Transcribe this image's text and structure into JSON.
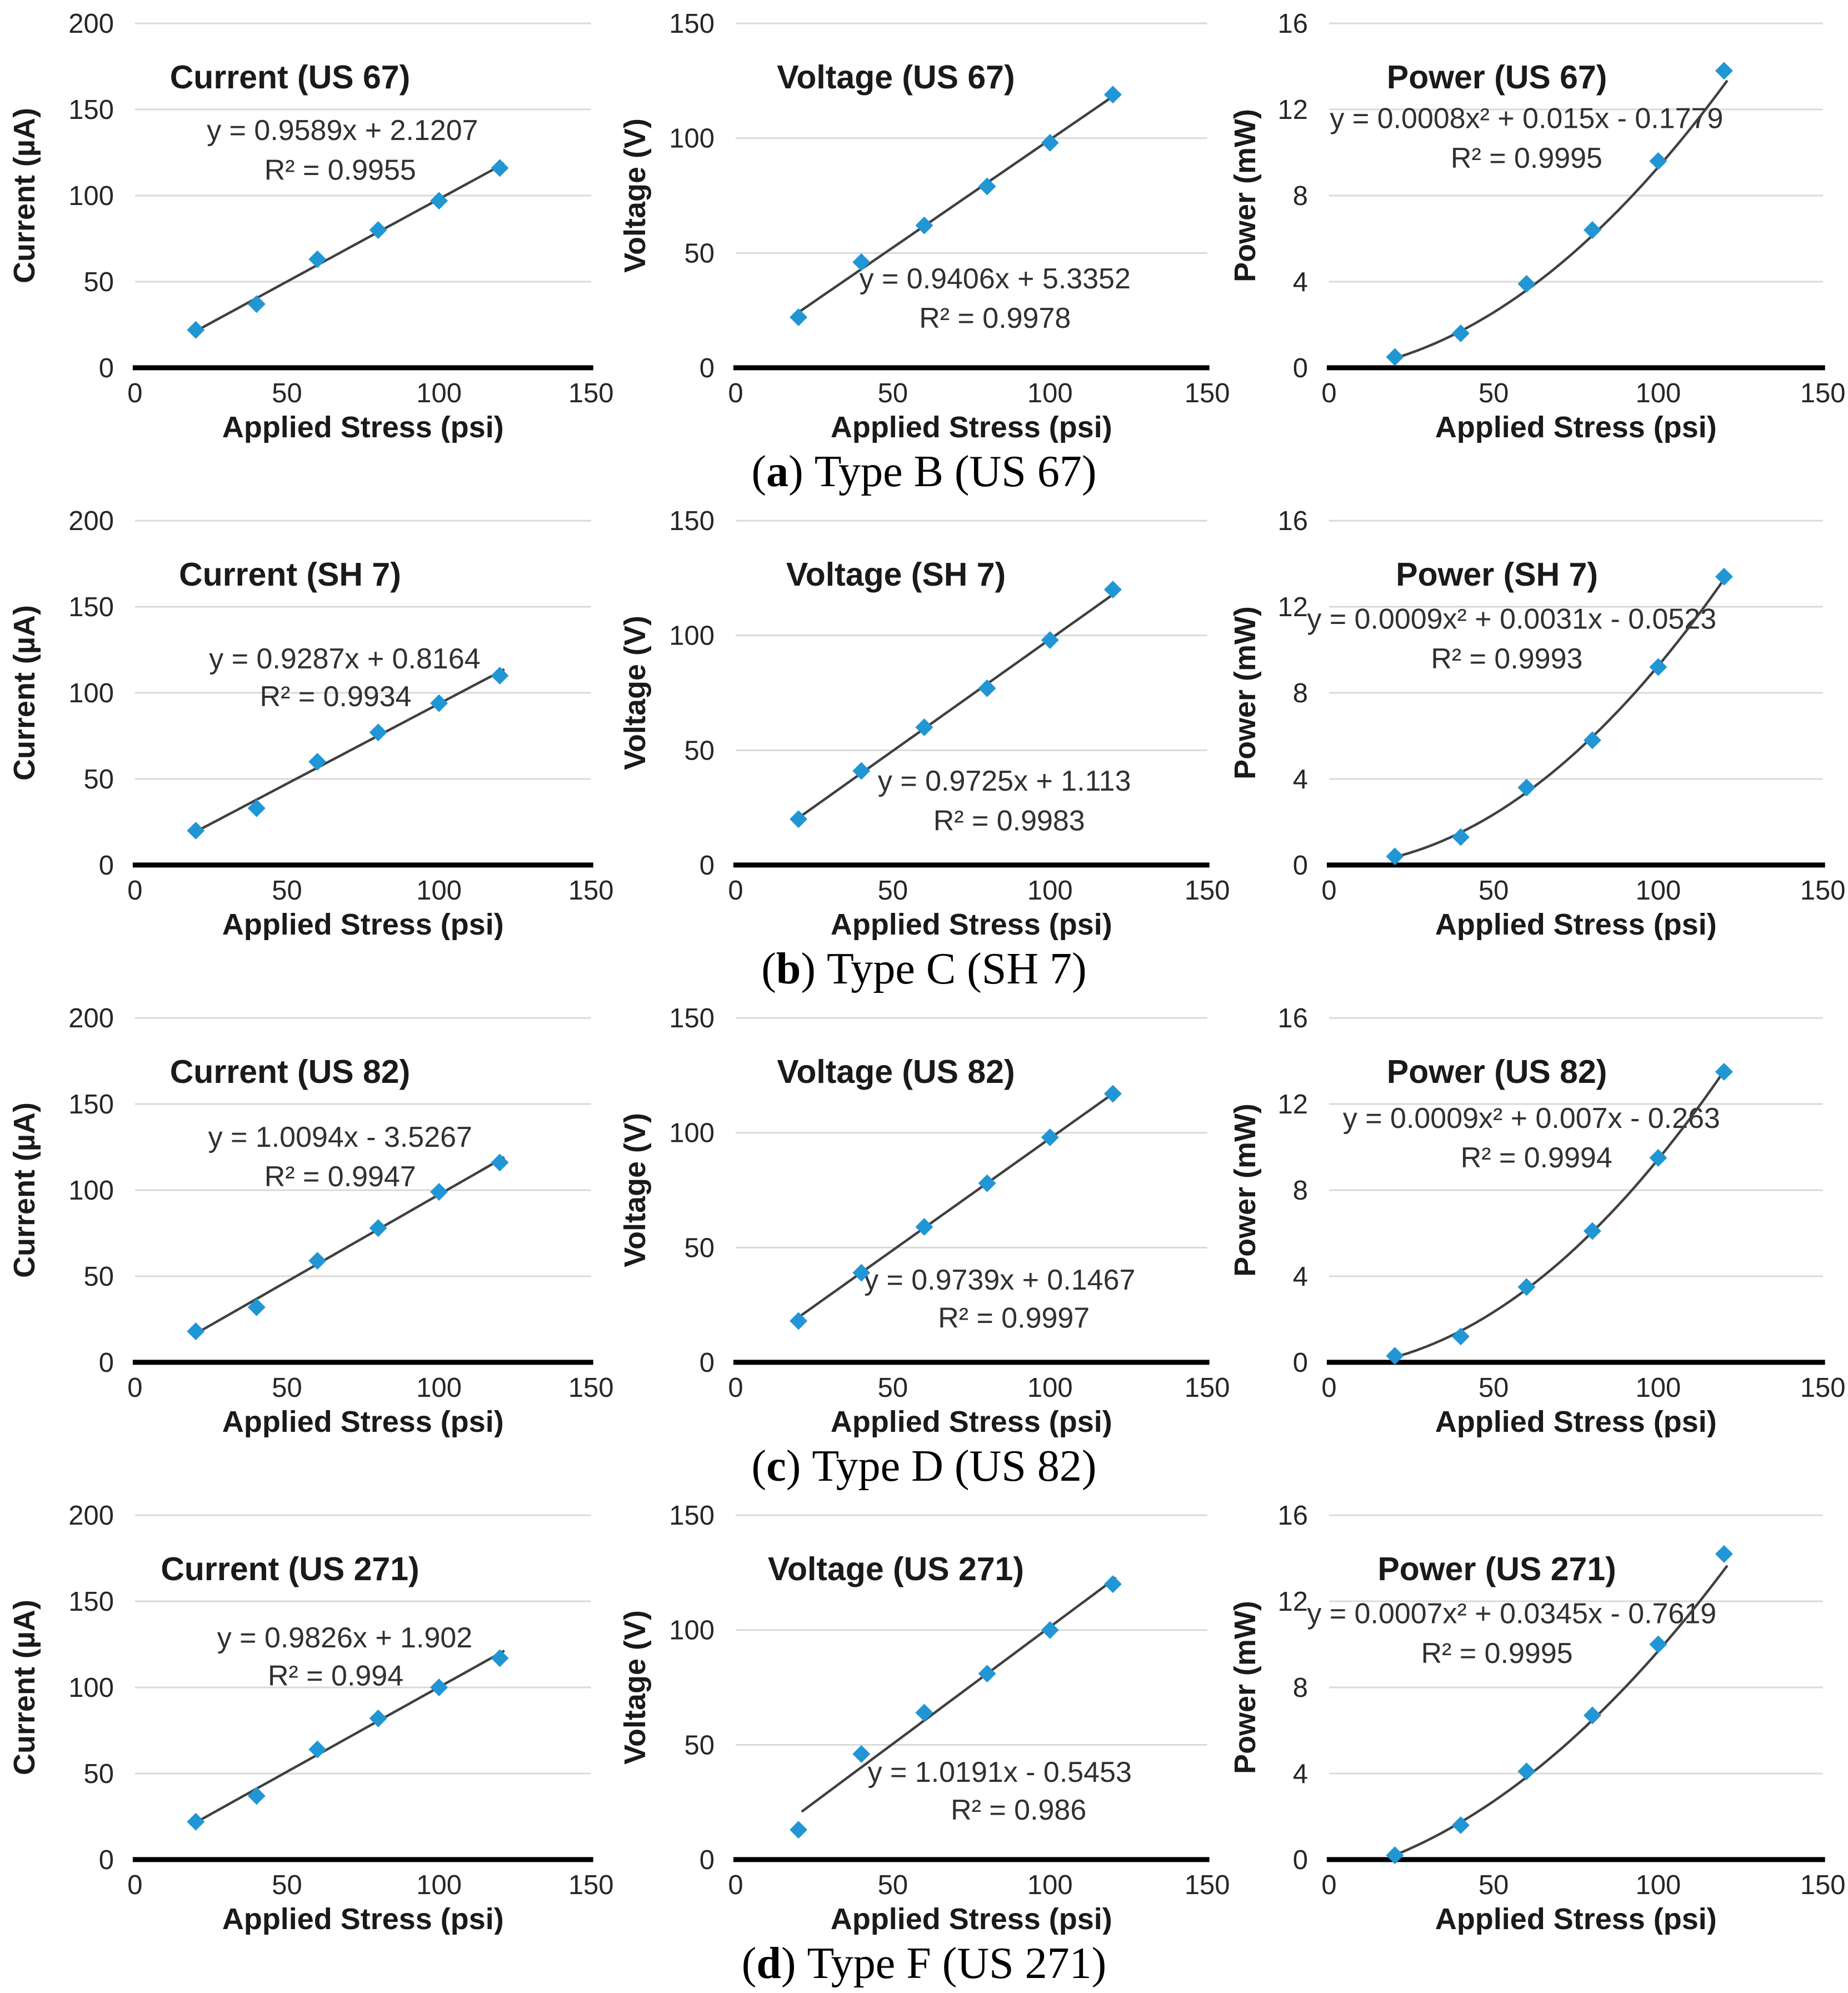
{
  "shared": {
    "xlabel": "Applied Stress (psi)",
    "xlim": [
      0,
      150
    ],
    "xticks": [
      0,
      50,
      100,
      150
    ],
    "marker_color": "#2196d4",
    "trend_color": "#404040",
    "grid_color": "#d9d9d9",
    "text_color": "#262626",
    "title_color": "#1a1a1a",
    "equation_color": "#303030",
    "background": "#ffffff"
  },
  "punct": {
    "open": "(",
    "close": ")"
  },
  "captions": [
    {
      "letter": "a",
      "text": "Type B (US 67)"
    },
    {
      "letter": "b",
      "text": "Type C (SH 7)"
    },
    {
      "letter": "c",
      "text": "Type D (US 82)"
    },
    {
      "letter": "d",
      "text": "Type F (US 271)"
    }
  ],
  "chart_data": [
    {
      "type": "scatter",
      "title": "Current (US 67)",
      "ylabel": "Current (µA)",
      "ylim": [
        0,
        200
      ],
      "yticks": [
        0,
        50,
        100,
        150,
        200
      ],
      "x": [
        20,
        40,
        60,
        80,
        100,
        120
      ],
      "y": [
        22,
        37,
        63,
        80,
        97,
        116
      ],
      "trendline": {
        "kind": "linear",
        "slope": 0.9589,
        "intercept": 2.1207,
        "domain": [
          20,
          121.5
        ]
      },
      "equation": "y = 0.9589x + 2.1207",
      "r_squared": "R² = 0.9955",
      "eq_pos": [
        0.455,
        0.31
      ],
      "r2_pos": [
        0.45,
        0.425
      ],
      "grid": true,
      "legend": "none"
    },
    {
      "type": "scatter",
      "title": "Voltage (US 67)",
      "ylabel": "Voltage (V)",
      "ylim": [
        0,
        150
      ],
      "yticks": [
        0,
        50,
        100,
        150
      ],
      "x": [
        20,
        40,
        60,
        80,
        100,
        120
      ],
      "y": [
        22,
        46,
        62,
        79,
        98,
        119
      ],
      "trendline": {
        "kind": "linear",
        "slope": 0.9406,
        "intercept": 5.3352,
        "domain": [
          20,
          121
        ]
      },
      "equation": "y = 0.9406x + 5.3352",
      "r_squared": "R² = 0.9978",
      "eq_pos": [
        0.55,
        0.74
      ],
      "r2_pos": [
        0.55,
        0.855
      ],
      "grid": true,
      "legend": "none"
    },
    {
      "type": "scatter",
      "title": "Power (US 67)",
      "ylabel": "Power (mW)",
      "ylim": [
        0,
        16
      ],
      "yticks": [
        0,
        4,
        8,
        12,
        16
      ],
      "x": [
        20,
        40,
        60,
        80,
        100,
        120
      ],
      "y": [
        0.5,
        1.6,
        3.9,
        6.4,
        9.6,
        13.8
      ],
      "trendline": {
        "kind": "quadratic",
        "a": 0.0008,
        "b": 0.015,
        "c": -0.1779,
        "domain": [
          19,
          121
        ]
      },
      "equation": "y = 0.0008x² + 0.015x - 0.1779",
      "r_squared": "R² = 0.9995",
      "eq_pos": [
        0.4,
        0.275
      ],
      "r2_pos": [
        0.4,
        0.39
      ],
      "grid": true,
      "legend": "none"
    },
    {
      "type": "scatter",
      "title": "Current (SH 7)",
      "ylabel": "Current (µA)",
      "ylim": [
        0,
        200
      ],
      "yticks": [
        0,
        50,
        100,
        150,
        200
      ],
      "x": [
        20,
        40,
        60,
        80,
        100,
        120
      ],
      "y": [
        20,
        33,
        60,
        77,
        94,
        110
      ],
      "trendline": {
        "kind": "linear",
        "slope": 0.9287,
        "intercept": 0.8164,
        "domain": [
          20,
          121.5
        ]
      },
      "equation": "y = 0.9287x + 0.8164",
      "r_squared": "R² = 0.9934",
      "eq_pos": [
        0.46,
        0.4
      ],
      "r2_pos": [
        0.44,
        0.51
      ],
      "grid": true,
      "legend": "none"
    },
    {
      "type": "scatter",
      "title": "Voltage (SH 7)",
      "ylabel": "Voltage (V)",
      "ylim": [
        0,
        150
      ],
      "yticks": [
        0,
        50,
        100,
        150
      ],
      "x": [
        20,
        40,
        60,
        80,
        100,
        120
      ],
      "y": [
        20,
        41,
        60,
        77,
        98,
        120
      ],
      "trendline": {
        "kind": "linear",
        "slope": 0.9725,
        "intercept": 1.113,
        "domain": [
          20,
          121
        ]
      },
      "equation": "y = 0.9725x + 1.113",
      "r_squared": "R² = 0.9983",
      "eq_pos": [
        0.57,
        0.755
      ],
      "r2_pos": [
        0.58,
        0.87
      ],
      "grid": true,
      "legend": "none"
    },
    {
      "type": "scatter",
      "title": "Power (SH 7)",
      "ylabel": "Power (mW)",
      "ylim": [
        0,
        16
      ],
      "yticks": [
        0,
        4,
        8,
        12,
        16
      ],
      "x": [
        20,
        40,
        60,
        80,
        100,
        120
      ],
      "y": [
        0.4,
        1.3,
        3.6,
        5.8,
        9.2,
        13.4
      ],
      "trendline": {
        "kind": "quadratic",
        "a": 0.0009,
        "b": 0.0031,
        "c": -0.0523,
        "domain": [
          19,
          121
        ]
      },
      "equation": "y = 0.0009x² + 0.0031x - 0.0523",
      "r_squared": "R² = 0.9993",
      "eq_pos": [
        0.37,
        0.285
      ],
      "r2_pos": [
        0.36,
        0.4
      ],
      "grid": true,
      "legend": "none"
    },
    {
      "type": "scatter",
      "title": "Current (US 82)",
      "ylabel": "Current (µA)",
      "ylim": [
        0,
        200
      ],
      "yticks": [
        0,
        50,
        100,
        150,
        200
      ],
      "x": [
        20,
        40,
        60,
        80,
        100,
        120
      ],
      "y": [
        18,
        32,
        59,
        78,
        99,
        116
      ],
      "trendline": {
        "kind": "linear",
        "slope": 1.0094,
        "intercept": -3.5267,
        "domain": [
          20,
          121.5
        ]
      },
      "equation": "y = 1.0094x - 3.5267",
      "r_squared": "R² = 0.9947",
      "eq_pos": [
        0.45,
        0.345
      ],
      "r2_pos": [
        0.45,
        0.46
      ],
      "grid": true,
      "legend": "none"
    },
    {
      "type": "scatter",
      "title": "Voltage (US 82)",
      "ylabel": "Voltage (V)",
      "ylim": [
        0,
        150
      ],
      "yticks": [
        0,
        50,
        100,
        150
      ],
      "x": [
        20,
        40,
        60,
        80,
        100,
        120
      ],
      "y": [
        18,
        39,
        59,
        78,
        98,
        117
      ],
      "trendline": {
        "kind": "linear",
        "slope": 0.9739,
        "intercept": 0.1467,
        "domain": [
          20,
          121
        ]
      },
      "equation": "y = 0.9739x + 0.1467",
      "r_squared": "R² = 0.9997",
      "eq_pos": [
        0.56,
        0.76
      ],
      "r2_pos": [
        0.59,
        0.87
      ],
      "grid": true,
      "legend": "none"
    },
    {
      "type": "scatter",
      "title": "Power (US 82)",
      "ylabel": "Power (mW)",
      "ylim": [
        0,
        16
      ],
      "yticks": [
        0,
        4,
        8,
        12,
        16
      ],
      "x": [
        20,
        40,
        60,
        80,
        100,
        120
      ],
      "y": [
        0.3,
        1.2,
        3.5,
        6.1,
        9.5,
        13.5
      ],
      "trendline": {
        "kind": "quadratic",
        "a": 0.0009,
        "b": 0.007,
        "c": -0.263,
        "domain": [
          19,
          121
        ]
      },
      "equation": "y = 0.0009x² + 0.007x - 0.263",
      "r_squared": "R² = 0.9994",
      "eq_pos": [
        0.41,
        0.29
      ],
      "r2_pos": [
        0.42,
        0.405
      ],
      "grid": true,
      "legend": "none"
    },
    {
      "type": "scatter",
      "title": "Current (US 271)",
      "ylabel": "Current (µA)",
      "ylim": [
        0,
        200
      ],
      "yticks": [
        0,
        50,
        100,
        150,
        200
      ],
      "x": [
        20,
        40,
        60,
        80,
        100,
        120
      ],
      "y": [
        22,
        37,
        64,
        82,
        100,
        117
      ],
      "trendline": {
        "kind": "linear",
        "slope": 0.9826,
        "intercept": 1.902,
        "domain": [
          20,
          121.5
        ]
      },
      "equation": "y = 0.9826x + 1.902",
      "r_squared": "R² = 0.994",
      "eq_pos": [
        0.46,
        0.355
      ],
      "r2_pos": [
        0.44,
        0.465
      ],
      "grid": true,
      "legend": "none"
    },
    {
      "type": "scatter",
      "title": "Voltage (US 271)",
      "ylabel": "Voltage (V)",
      "ylim": [
        0,
        150
      ],
      "yticks": [
        0,
        50,
        100,
        150
      ],
      "x": [
        20,
        40,
        60,
        80,
        100,
        120
      ],
      "y": [
        13,
        46,
        64,
        81,
        100,
        120
      ],
      "trendline": {
        "kind": "linear",
        "slope": 1.0191,
        "intercept": -0.5453,
        "domain": [
          21,
          121
        ]
      },
      "equation": "y = 1.0191x - 0.5453",
      "r_squared": "R² = 0.986",
      "eq_pos": [
        0.56,
        0.745
      ],
      "r2_pos": [
        0.6,
        0.855
      ],
      "grid": true,
      "legend": "none"
    },
    {
      "type": "scatter",
      "title": "Power (US 271)",
      "ylabel": "Power (mW)",
      "ylim": [
        0,
        16
      ],
      "yticks": [
        0,
        4,
        8,
        12,
        16
      ],
      "x": [
        20,
        40,
        60,
        80,
        100,
        120
      ],
      "y": [
        0.2,
        1.6,
        4.1,
        6.7,
        10.0,
        14.2
      ],
      "trendline": {
        "kind": "quadratic",
        "a": 0.0007,
        "b": 0.0345,
        "c": -0.7619,
        "domain": [
          19,
          121
        ]
      },
      "equation": "y = 0.0007x² + 0.0345x - 0.7619",
      "r_squared": "R² = 0.9995",
      "eq_pos": [
        0.37,
        0.285
      ],
      "r2_pos": [
        0.34,
        0.4
      ],
      "grid": true,
      "legend": "none"
    }
  ]
}
